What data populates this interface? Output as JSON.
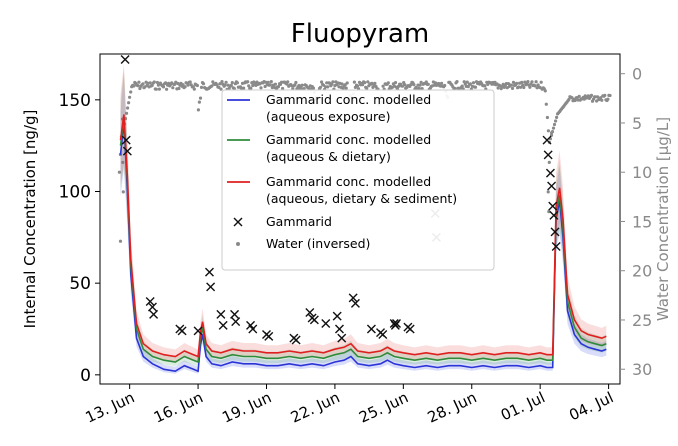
{
  "chart_data": {
    "type": "line",
    "title": "Fluopyram",
    "ylabel_left": "Internal Concentration [ng/g]",
    "ylabel_right": "Water Concentration [µg/L]",
    "x_ticks": [
      "13. Jun",
      "16. Jun",
      "19. Jun",
      "22. Jun",
      "25. Jun",
      "28. Jun",
      "01. Jul",
      "04. Jul"
    ],
    "x_tick_days": [
      13,
      16,
      19,
      22,
      25,
      28,
      31,
      34
    ],
    "xlim": [
      11.7,
      34.5
    ],
    "y_left_ticks": [
      "0",
      "50",
      "100",
      "150"
    ],
    "y_left_tick_values": [
      0,
      50,
      100,
      150
    ],
    "ylim_left": [
      -5,
      175
    ],
    "y_right_ticks": [
      "0",
      "5",
      "10",
      "15",
      "20",
      "25",
      "30"
    ],
    "y_right_tick_values": [
      0,
      5,
      10,
      15,
      20,
      25,
      30
    ],
    "ylim_right_inverted": [
      -2,
      31.5
    ],
    "grid": false,
    "legend_position": "upper-center",
    "legend": [
      {
        "label_line1": "Gammarid conc. modelled",
        "label_line2": "(aqueous exposure)",
        "marker": "line",
        "color": "#2b35d6"
      },
      {
        "label_line1": "Gammarid conc. modelled",
        "label_line2": "(aqueous & dietary)",
        "marker": "line",
        "color": "#2e8b3c"
      },
      {
        "label_line1": "Gammarid conc. modelled",
        "label_line2": "(aqueous, dietary & sediment)",
        "marker": "line",
        "color": "#e02020"
      },
      {
        "label_line1": "Gammarid",
        "label_line2": "",
        "marker": "x",
        "color": "#111111"
      },
      {
        "label_line1": "Water (inversed)",
        "label_line2": "",
        "marker": "dot",
        "color": "#8a8a8a"
      }
    ],
    "series": [
      {
        "key": "aqueous",
        "color": "#2b35d6",
        "x": [
          12.6,
          12.75,
          12.9,
          13.05,
          13.3,
          13.6,
          14.0,
          14.5,
          15.0,
          15.4,
          15.8,
          16.0,
          16.1,
          16.2,
          16.35,
          16.6,
          17.0,
          17.5,
          18.0,
          18.5,
          19.0,
          19.5,
          20.0,
          20.5,
          21.0,
          21.5,
          22.0,
          22.4,
          22.7,
          23.0,
          23.5,
          24.0,
          24.3,
          24.6,
          25.0,
          25.5,
          26.0,
          26.5,
          27.0,
          27.5,
          28.0,
          28.5,
          29.0,
          29.5,
          30.0,
          30.5,
          31.0,
          31.3,
          31.55,
          31.7,
          31.85,
          32.0,
          32.2,
          32.5,
          32.8,
          33.1,
          33.4,
          33.7,
          33.9
        ],
        "y": [
          120,
          138,
          100,
          55,
          20,
          10,
          6,
          3,
          2,
          5,
          3,
          2,
          16,
          22,
          10,
          6,
          5,
          7,
          6,
          6,
          5,
          5,
          6,
          5,
          6,
          5,
          7,
          8,
          10,
          6,
          5,
          6,
          8,
          6,
          5,
          4,
          5,
          4,
          5,
          5,
          4,
          5,
          4,
          5,
          5,
          4,
          5,
          4,
          4,
          85,
          95,
          75,
          35,
          22,
          17,
          15,
          14,
          13,
          14
        ]
      },
      {
        "key": "dietary",
        "color": "#2e8b3c",
        "x": [
          12.6,
          12.75,
          12.9,
          13.05,
          13.3,
          13.6,
          14.0,
          14.5,
          15.0,
          15.4,
          15.8,
          16.0,
          16.1,
          16.2,
          16.35,
          16.6,
          17.0,
          17.5,
          18.0,
          18.5,
          19.0,
          19.5,
          20.0,
          20.5,
          21.0,
          21.5,
          22.0,
          22.4,
          22.7,
          23.0,
          23.5,
          24.0,
          24.3,
          24.6,
          25.0,
          25.5,
          26.0,
          26.5,
          27.0,
          27.5,
          28.0,
          28.5,
          29.0,
          29.5,
          30.0,
          30.5,
          31.0,
          31.3,
          31.55,
          31.7,
          31.85,
          32.0,
          32.2,
          32.5,
          32.8,
          33.1,
          33.4,
          33.7,
          33.9
        ],
        "y": [
          125,
          140,
          105,
          60,
          25,
          14,
          10,
          8,
          7,
          10,
          8,
          7,
          20,
          26,
          14,
          10,
          9,
          11,
          10,
          10,
          9,
          9,
          10,
          9,
          10,
          9,
          11,
          12,
          14,
          10,
          9,
          10,
          12,
          10,
          9,
          8,
          9,
          8,
          9,
          9,
          8,
          9,
          8,
          9,
          9,
          8,
          9,
          8,
          8,
          88,
          98,
          80,
          40,
          26,
          20,
          18,
          17,
          16,
          17
        ]
      },
      {
        "key": "sediment",
        "color": "#e02020",
        "x": [
          12.6,
          12.75,
          12.9,
          13.05,
          13.3,
          13.6,
          14.0,
          14.5,
          15.0,
          15.4,
          15.8,
          16.0,
          16.1,
          16.2,
          16.35,
          16.6,
          17.0,
          17.5,
          18.0,
          18.5,
          19.0,
          19.5,
          20.0,
          20.5,
          21.0,
          21.5,
          22.0,
          22.4,
          22.7,
          23.0,
          23.5,
          24.0,
          24.3,
          24.6,
          25.0,
          25.5,
          26.0,
          26.5,
          27.0,
          27.5,
          28.0,
          28.5,
          29.0,
          29.5,
          30.0,
          30.5,
          31.0,
          31.3,
          31.55,
          31.7,
          31.85,
          32.0,
          32.2,
          32.5,
          32.8,
          33.1,
          33.4,
          33.7,
          33.9
        ],
        "y": [
          128,
          142,
          108,
          63,
          28,
          17,
          13,
          11,
          10,
          13,
          11,
          10,
          23,
          29,
          17,
          13,
          12,
          14,
          13,
          13,
          12,
          12,
          13,
          12,
          13,
          12,
          14,
          15,
          17,
          13,
          12,
          13,
          15,
          13,
          12,
          11,
          12,
          11,
          12,
          12,
          11,
          12,
          11,
          12,
          12,
          11,
          12,
          11,
          11,
          92,
          102,
          85,
          44,
          30,
          24,
          22,
          21,
          20,
          21
        ]
      }
    ],
    "gammarid_points": {
      "x": [
        12.8,
        12.85,
        12.9,
        13.9,
        14.0,
        14.05,
        15.2,
        15.3,
        16.0,
        16.5,
        16.55,
        17.0,
        17.1,
        17.6,
        17.65,
        18.3,
        18.4,
        19.0,
        19.1,
        20.2,
        20.3,
        20.9,
        21.0,
        21.1,
        21.6,
        22.1,
        22.2,
        22.3,
        22.8,
        22.9,
        23.6,
        24.0,
        24.1,
        24.6,
        24.65,
        24.7,
        25.2,
        25.3,
        26.4,
        26.45,
        31.3,
        31.35,
        31.45,
        31.5,
        31.55,
        31.6,
        31.65,
        31.7
      ],
      "y": [
        172,
        128,
        122,
        40,
        37,
        33,
        25,
        24,
        24,
        56,
        48,
        33,
        27,
        33,
        29,
        27,
        25,
        22,
        21,
        20,
        19,
        34,
        31,
        30,
        28,
        32,
        25,
        20,
        42,
        39,
        25,
        23,
        22,
        28,
        27,
        28,
        26,
        25,
        88,
        75,
        128,
        120,
        110,
        103,
        92,
        87,
        78,
        70
      ]
    }
  }
}
